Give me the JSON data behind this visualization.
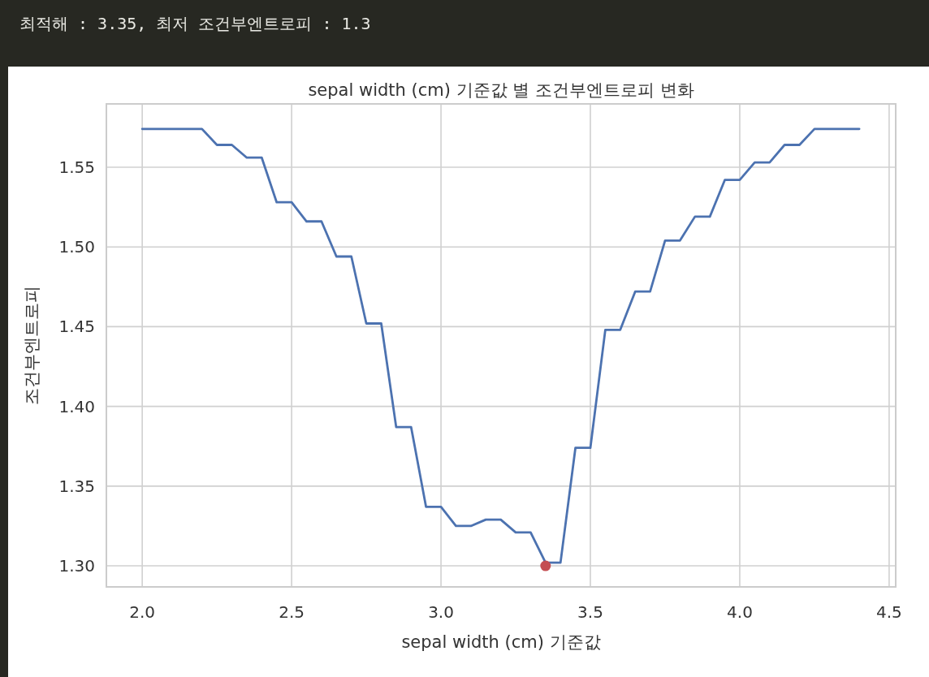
{
  "chart_data": {
    "type": "line",
    "title": "sepal width (cm) 기준값 별 조건부엔트로피 변화",
    "xlabel": "sepal width (cm) 기준값",
    "ylabel": "조건부엔트로피",
    "annotations": [
      "최적해 : 3.35, 최저 조건부엔트로피 : 1.3"
    ],
    "series": [
      {
        "color": "#4c72b0",
        "x": [
          2.0,
          2.05,
          2.1,
          2.15,
          2.2,
          2.25,
          2.3,
          2.35,
          2.4,
          2.45,
          2.5,
          2.55,
          2.6,
          2.65,
          2.7,
          2.75,
          2.8,
          2.85,
          2.9,
          2.95,
          3.0,
          3.05,
          3.1,
          3.15,
          3.2,
          3.25,
          3.3,
          3.35,
          3.4,
          3.45,
          3.5,
          3.55,
          3.6,
          3.65,
          3.7,
          3.75,
          3.8,
          3.85,
          3.9,
          3.95,
          4.0,
          4.05,
          4.1,
          4.15,
          4.2,
          4.25,
          4.3,
          4.35,
          4.4
        ],
        "values": [
          1.574,
          1.574,
          1.574,
          1.574,
          1.574,
          1.564,
          1.564,
          1.556,
          1.556,
          1.528,
          1.528,
          1.516,
          1.516,
          1.494,
          1.494,
          1.452,
          1.452,
          1.387,
          1.387,
          1.337,
          1.337,
          1.325,
          1.325,
          1.329,
          1.329,
          1.321,
          1.321,
          1.302,
          1.302,
          1.374,
          1.374,
          1.448,
          1.448,
          1.472,
          1.472,
          1.504,
          1.504,
          1.519,
          1.519,
          1.542,
          1.542,
          1.553,
          1.553,
          1.564,
          1.564,
          1.574,
          1.574,
          1.574,
          1.574
        ]
      },
      {
        "type": "scatter",
        "marker": "circle",
        "color": "#c44e52",
        "x": [
          3.35
        ],
        "values": [
          1.3
        ]
      }
    ],
    "xlim": [
      1.88,
      4.522
    ],
    "ylim": [
      1.2868,
      1.5897
    ],
    "xticks": [
      {
        "value": 2,
        "label": "2.0"
      },
      2.5,
      {
        "value": 3,
        "label": "3.0"
      },
      3.5,
      {
        "value": 4,
        "label": "4.0"
      },
      4.5
    ],
    "yticks": [
      {
        "value": 1.3,
        "label": "1.30"
      },
      1.35,
      {
        "value": 1.4,
        "label": "1.40"
      },
      1.45,
      {
        "value": 1.5,
        "label": "1.50"
      },
      1.55
    ],
    "grid": true,
    "line_style": "solid"
  }
}
